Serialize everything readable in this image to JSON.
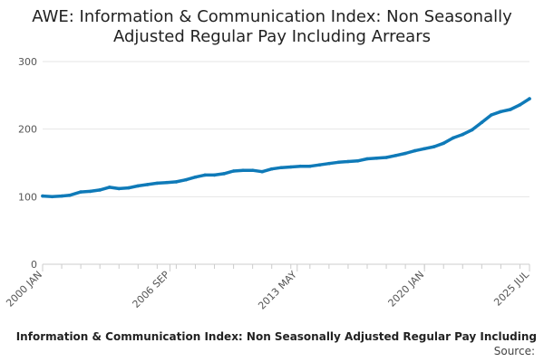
{
  "chart_data": {
    "type": "line",
    "title_lines": [
      "AWE: Information & Communication Index: Non Seasonally",
      "Adjusted Regular Pay Including Arrears"
    ],
    "xlabel": "",
    "ylabel": "",
    "ylim": [
      0,
      300
    ],
    "yticks": [
      0,
      100,
      200,
      300
    ],
    "xlim": [
      "2000-01",
      "2025-07"
    ],
    "xticks": [
      {
        "date": "2000-01",
        "label": "2000 JAN"
      },
      {
        "date": "2006-09",
        "label": "2006 SEP"
      },
      {
        "date": "2013-05",
        "label": "2013 MAY"
      },
      {
        "date": "2020-01",
        "label": "2020 JAN"
      },
      {
        "date": "2025-07",
        "label": "2025 JUL"
      }
    ],
    "grid": true,
    "legend": "none",
    "line_color": "#0f7ab8",
    "series": [
      {
        "name": "",
        "points": [
          [
            "2000-01",
            101
          ],
          [
            "2000-07",
            100
          ],
          [
            "2001-01",
            101
          ],
          [
            "2001-06",
            102
          ],
          [
            "2002-01",
            107
          ],
          [
            "2002-07",
            108
          ],
          [
            "2003-01",
            110
          ],
          [
            "2003-07",
            114
          ],
          [
            "2004-01",
            112
          ],
          [
            "2004-07",
            113
          ],
          [
            "2005-01",
            116
          ],
          [
            "2005-07",
            118
          ],
          [
            "2006-01",
            120
          ],
          [
            "2006-07",
            121
          ],
          [
            "2007-01",
            122
          ],
          [
            "2007-07",
            125
          ],
          [
            "2008-01",
            129
          ],
          [
            "2008-07",
            132
          ],
          [
            "2009-01",
            132
          ],
          [
            "2009-07",
            134
          ],
          [
            "2010-01",
            138
          ],
          [
            "2010-07",
            139
          ],
          [
            "2011-01",
            139
          ],
          [
            "2011-07",
            137
          ],
          [
            "2012-01",
            141
          ],
          [
            "2012-07",
            143
          ],
          [
            "2013-01",
            144
          ],
          [
            "2013-07",
            145
          ],
          [
            "2014-01",
            145
          ],
          [
            "2014-07",
            147
          ],
          [
            "2015-01",
            149
          ],
          [
            "2015-07",
            151
          ],
          [
            "2016-01",
            152
          ],
          [
            "2016-07",
            153
          ],
          [
            "2017-01",
            156
          ],
          [
            "2017-07",
            157
          ],
          [
            "2018-01",
            158
          ],
          [
            "2018-07",
            161
          ],
          [
            "2019-01",
            164
          ],
          [
            "2019-07",
            168
          ],
          [
            "2020-01",
            171
          ],
          [
            "2020-07",
            174
          ],
          [
            "2021-01",
            179
          ],
          [
            "2021-07",
            187
          ],
          [
            "2022-01",
            192
          ],
          [
            "2022-07",
            199
          ],
          [
            "2023-01",
            210
          ],
          [
            "2023-07",
            221
          ],
          [
            "2024-01",
            226
          ],
          [
            "2024-07",
            229
          ],
          [
            "2025-01",
            236
          ],
          [
            "2025-07",
            245
          ]
        ]
      }
    ]
  },
  "footer": {
    "title": "Information & Communication Index: Non Seasonally Adjusted Regular Pay Including",
    "source": "Source:"
  }
}
